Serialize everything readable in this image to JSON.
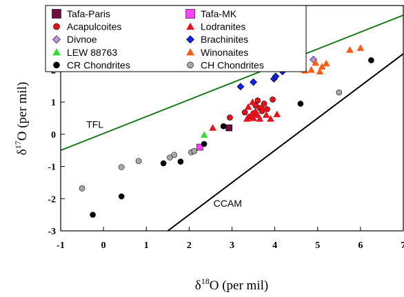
{
  "chart_data": {
    "type": "scatter",
    "title": "",
    "xlabel_prefix": "δ",
    "xlabel_sup": "18",
    "xlabel_suffix": "O (per mil)",
    "ylabel_prefix": "δ",
    "ylabel_sup": "17",
    "ylabel_suffix": "O (per mil)",
    "xlim": [
      -1,
      7
    ],
    "ylim": [
      -3,
      4
    ],
    "xticks": [
      "-1",
      "0",
      "1",
      "2",
      "3",
      "4",
      "5",
      "6",
      "7"
    ],
    "yticks": [
      "-3",
      "-2",
      "-1",
      "0",
      "1",
      "2"
    ],
    "grid": false,
    "legend_position": "top",
    "lines": [
      {
        "label": "TFL",
        "x": [
          -1,
          7
        ],
        "y": [
          -0.5,
          3.7
        ],
        "color": "#1a7a1a"
      },
      {
        "label": "CCAM",
        "x": [
          1.5,
          7
        ],
        "y": [
          -3.0,
          2.5
        ],
        "color": "#000000"
      }
    ],
    "series": [
      {
        "name": "Tafa-Paris",
        "marker": "square",
        "color": "#6b1040",
        "points": [
          [
            2.93,
            0.2
          ]
        ]
      },
      {
        "name": "Tafa-MK",
        "marker": "square",
        "color": "#ff40ff",
        "points": [
          [
            2.25,
            -0.4
          ]
        ]
      },
      {
        "name": "Acapulcoites",
        "marker": "circle",
        "color": "#e8101a",
        "points": [
          [
            2.95,
            0.52
          ],
          [
            3.3,
            0.68
          ],
          [
            3.42,
            0.55
          ],
          [
            3.5,
            0.65
          ],
          [
            3.55,
            0.9
          ],
          [
            3.6,
            1.05
          ],
          [
            3.65,
            0.82
          ],
          [
            3.7,
            0.72
          ],
          [
            3.75,
            0.95
          ],
          [
            3.82,
            0.78
          ],
          [
            3.95,
            1.08
          ]
        ]
      },
      {
        "name": "Lodranites",
        "marker": "triangle",
        "color": "#e8101a",
        "points": [
          [
            2.55,
            0.2
          ],
          [
            3.35,
            0.48
          ],
          [
            3.38,
            0.85
          ],
          [
            3.45,
            0.58
          ],
          [
            3.48,
            1.0
          ],
          [
            3.5,
            0.5
          ],
          [
            3.55,
            0.72
          ],
          [
            3.6,
            0.6
          ],
          [
            3.65,
            0.48
          ],
          [
            3.72,
            0.8
          ],
          [
            3.8,
            0.6
          ],
          [
            3.9,
            0.48
          ],
          [
            4.05,
            0.62
          ]
        ]
      },
      {
        "name": "Divnoe",
        "marker": "diamond",
        "color": "#c08ce8",
        "points": [
          [
            4.9,
            2.32
          ]
        ]
      },
      {
        "name": "Brachinites",
        "marker": "diamond",
        "color": "#1020ee",
        "points": [
          [
            3.2,
            1.48
          ],
          [
            3.5,
            1.62
          ],
          [
            3.98,
            1.72
          ],
          [
            4.02,
            1.8
          ],
          [
            4.18,
            1.95
          ]
        ]
      },
      {
        "name": "LEW 88763",
        "marker": "triangle",
        "color": "#33dd33",
        "points": [
          [
            2.35,
            -0.02
          ]
        ]
      },
      {
        "name": "Winonaites",
        "marker": "triangle",
        "color": "#ff5a10",
        "points": [
          [
            4.7,
            1.98
          ],
          [
            4.85,
            2.0
          ],
          [
            4.95,
            2.22
          ],
          [
            5.05,
            1.95
          ],
          [
            5.1,
            2.1
          ],
          [
            5.2,
            2.2
          ],
          [
            5.75,
            2.62
          ],
          [
            6.0,
            2.68
          ]
        ]
      },
      {
        "name": "CR Chondrites",
        "marker": "circle",
        "color": "#000000",
        "points": [
          [
            -0.25,
            -2.5
          ],
          [
            0.42,
            -1.93
          ],
          [
            1.4,
            -0.9
          ],
          [
            1.8,
            -0.85
          ],
          [
            2.35,
            -0.3
          ],
          [
            2.8,
            0.25
          ],
          [
            4.6,
            0.95
          ],
          [
            6.25,
            2.3
          ]
        ]
      },
      {
        "name": "CH Chondrites",
        "marker": "circle",
        "color": "#a8a8a8",
        "points": [
          [
            -0.5,
            -1.68
          ],
          [
            0.42,
            -1.02
          ],
          [
            0.82,
            -0.83
          ],
          [
            1.55,
            -0.72
          ],
          [
            1.65,
            -0.64
          ],
          [
            2.05,
            -0.56
          ],
          [
            2.12,
            -0.52
          ],
          [
            5.5,
            1.3
          ]
        ]
      }
    ],
    "annotations": [
      {
        "text": "TFL",
        "x": -0.2,
        "y": 0.2
      },
      {
        "text": "CCAM",
        "x": 2.9,
        "y": -2.25
      }
    ]
  }
}
